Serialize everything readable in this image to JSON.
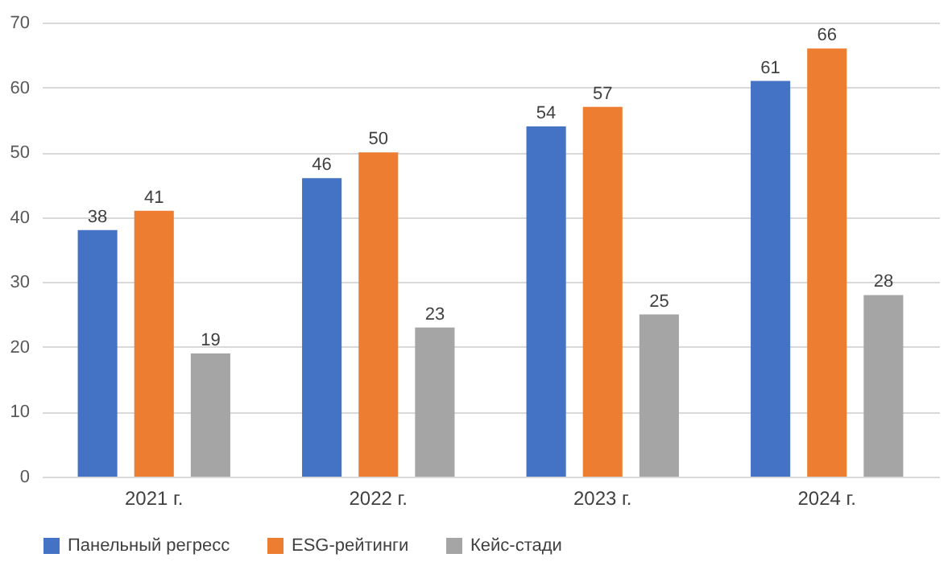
{
  "chart_data": {
    "type": "bar",
    "categories": [
      "2021 г.",
      "2022 г.",
      "2023 г.",
      "2024 г."
    ],
    "series": [
      {
        "name": "Панельный регресс",
        "color": "#4472c4",
        "values": [
          38,
          46,
          54,
          61
        ]
      },
      {
        "name": "ESG-рейтинги",
        "color": "#ed7d31",
        "values": [
          41,
          50,
          57,
          66
        ]
      },
      {
        "name": "Кейс-стади",
        "color": "#a5a5a5",
        "values": [
          19,
          23,
          25,
          28
        ]
      }
    ],
    "ylim": [
      0,
      70
    ],
    "yticks": [
      0,
      10,
      20,
      30,
      40,
      50,
      60,
      70
    ],
    "grid": "y",
    "legend": "bottom",
    "data_labels": true
  }
}
